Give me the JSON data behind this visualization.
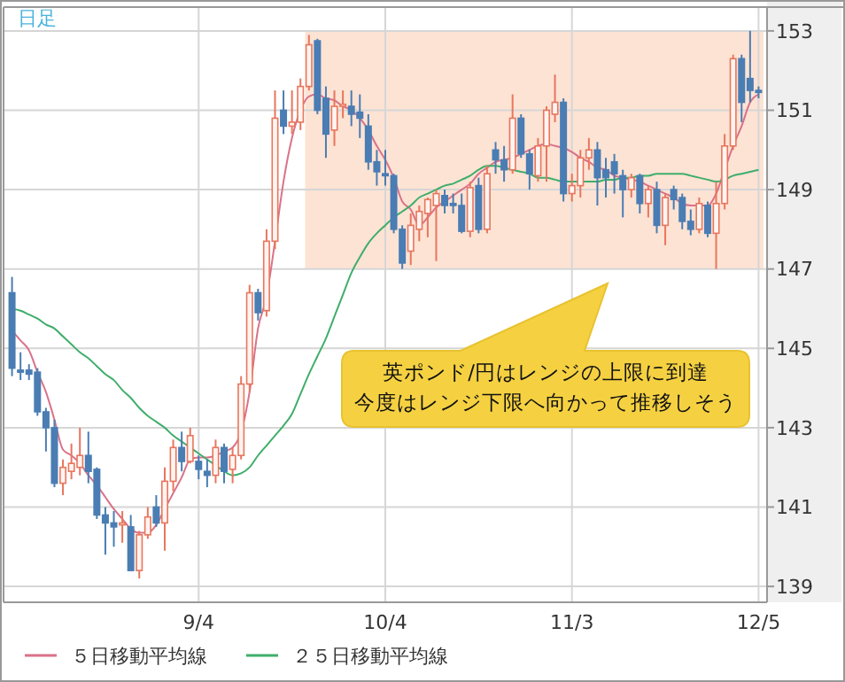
{
  "chart_data": {
    "type": "candlestick",
    "title": "日足",
    "categories": [
      null,
      null,
      null,
      null,
      null,
      null,
      null,
      null,
      null,
      null,
      null,
      null,
      null,
      null,
      null,
      null,
      null,
      null,
      null,
      null,
      null,
      null,
      "9/4",
      null,
      null,
      null,
      null,
      null,
      null,
      null,
      null,
      null,
      null,
      null,
      null,
      null,
      null,
      null,
      null,
      null,
      null,
      null,
      null,
      null,
      "10/4",
      null,
      null,
      null,
      null,
      null,
      null,
      null,
      null,
      null,
      null,
      null,
      null,
      null,
      null,
      null,
      null,
      null,
      null,
      null,
      null,
      null,
      "11/3",
      null,
      null,
      null,
      null,
      null,
      null,
      null,
      null,
      null,
      null,
      null,
      null,
      null,
      null,
      null,
      null,
      null,
      null,
      null,
      null,
      null,
      "12/5"
    ],
    "ohlc": [
      [
        146.4,
        146.8,
        144.3,
        144.5
      ],
      [
        144.45,
        144.9,
        144.2,
        144.4
      ],
      [
        144.45,
        144.6,
        144.2,
        144.35
      ],
      [
        144.4,
        144.5,
        143.3,
        143.4
      ],
      [
        143.4,
        143.5,
        142.4,
        143.0
      ],
      [
        143.0,
        143.2,
        141.5,
        141.6
      ],
      [
        141.6,
        142.2,
        141.3,
        142.0
      ],
      [
        141.9,
        142.6,
        141.7,
        142.1
      ],
      [
        142.0,
        143.0,
        141.8,
        142.3
      ],
      [
        142.3,
        142.9,
        141.6,
        141.9
      ],
      [
        141.95,
        142.0,
        140.7,
        140.8
      ],
      [
        140.8,
        141.0,
        139.8,
        140.6
      ],
      [
        140.6,
        140.9,
        140.0,
        140.5
      ],
      [
        140.55,
        140.9,
        140.1,
        140.6
      ],
      [
        140.5,
        140.8,
        139.4,
        139.4
      ],
      [
        139.4,
        140.4,
        139.2,
        140.3
      ],
      [
        140.3,
        141.0,
        140.2,
        140.75
      ],
      [
        141.0,
        141.3,
        140.5,
        140.6
      ],
      [
        140.6,
        142.0,
        139.9,
        141.65
      ],
      [
        141.65,
        142.7,
        141.4,
        142.5
      ],
      [
        142.5,
        142.9,
        141.9,
        142.15
      ],
      [
        142.15,
        143.0,
        142.1,
        142.8
      ],
      [
        142.15,
        142.3,
        141.7,
        141.95
      ],
      [
        141.9,
        142.2,
        141.5,
        141.8
      ],
      [
        141.8,
        142.7,
        141.6,
        142.5
      ],
      [
        142.5,
        142.6,
        141.6,
        141.9
      ],
      [
        141.95,
        142.5,
        141.6,
        142.3
      ],
      [
        142.3,
        144.3,
        142.2,
        144.1
      ],
      [
        144.1,
        146.6,
        143.9,
        146.4
      ],
      [
        146.4,
        146.5,
        145.7,
        145.9
      ],
      [
        145.95,
        148.0,
        145.8,
        147.7
      ],
      [
        147.7,
        151.5,
        147.5,
        150.8
      ],
      [
        151.0,
        151.5,
        150.4,
        150.6
      ],
      [
        150.6,
        151.5,
        150.4,
        150.7
      ],
      [
        150.7,
        151.8,
        150.5,
        151.6
      ],
      [
        151.6,
        152.9,
        151.5,
        152.65
      ],
      [
        152.75,
        152.8,
        150.9,
        151.0
      ],
      [
        151.3,
        151.6,
        149.8,
        150.4
      ],
      [
        150.5,
        151.5,
        150.1,
        151.1
      ],
      [
        151.1,
        151.5,
        150.8,
        151.15
      ],
      [
        151.1,
        151.5,
        150.6,
        150.9
      ],
      [
        150.95,
        151.4,
        150.3,
        150.8
      ],
      [
        150.6,
        150.9,
        149.5,
        149.7
      ],
      [
        149.7,
        150.0,
        149.1,
        149.45
      ],
      [
        149.4,
        150.0,
        149.1,
        149.35
      ],
      [
        149.35,
        149.4,
        147.9,
        148.0
      ],
      [
        148.0,
        148.1,
        147.0,
        147.15
      ],
      [
        147.45,
        148.4,
        147.1,
        148.1
      ],
      [
        148.0,
        148.6,
        147.7,
        148.45
      ],
      [
        148.4,
        148.8,
        147.8,
        148.75
      ],
      [
        148.6,
        149.0,
        147.2,
        148.9
      ],
      [
        148.85,
        149.0,
        148.4,
        148.6
      ],
      [
        148.65,
        148.9,
        148.4,
        148.6
      ],
      [
        148.6,
        148.9,
        147.9,
        147.95
      ],
      [
        147.95,
        149.2,
        147.8,
        149.05
      ],
      [
        149.1,
        149.3,
        147.9,
        148.0
      ],
      [
        148.0,
        149.6,
        147.9,
        149.4
      ],
      [
        150.0,
        150.2,
        149.4,
        149.75
      ],
      [
        149.75,
        150.1,
        149.2,
        149.5
      ],
      [
        149.5,
        151.4,
        149.4,
        150.8
      ],
      [
        150.8,
        150.9,
        149.8,
        149.9
      ],
      [
        149.9,
        150.0,
        149.0,
        149.4
      ],
      [
        149.35,
        150.3,
        149.2,
        150.1
      ],
      [
        150.1,
        151.1,
        149.2,
        151.0
      ],
      [
        150.9,
        151.9,
        150.7,
        151.2
      ],
      [
        151.2,
        151.3,
        148.7,
        148.9
      ],
      [
        148.9,
        149.4,
        148.7,
        149.1
      ],
      [
        149.1,
        150.0,
        148.8,
        149.8
      ],
      [
        149.8,
        150.3,
        149.5,
        150.0
      ],
      [
        150.0,
        150.2,
        148.6,
        149.3
      ],
      [
        149.5,
        149.8,
        148.8,
        149.3
      ],
      [
        149.7,
        149.9,
        148.9,
        149.4
      ],
      [
        149.35,
        149.5,
        148.3,
        149.0
      ],
      [
        149.0,
        149.4,
        148.8,
        149.3
      ],
      [
        149.35,
        149.4,
        148.4,
        148.65
      ],
      [
        148.65,
        149.1,
        148.3,
        149.0
      ],
      [
        149.0,
        149.2,
        147.9,
        148.1
      ],
      [
        148.1,
        148.9,
        147.6,
        148.8
      ],
      [
        149.0,
        149.1,
        148.5,
        148.75
      ],
      [
        148.8,
        148.9,
        148.0,
        148.2
      ],
      [
        148.2,
        148.5,
        147.85,
        148.0
      ],
      [
        148.0,
        148.8,
        147.9,
        148.65
      ],
      [
        148.6,
        148.7,
        147.8,
        147.9
      ],
      [
        147.9,
        149.2,
        147.0,
        148.65
      ],
      [
        148.65,
        150.4,
        148.5,
        150.1
      ],
      [
        150.1,
        152.4,
        150.0,
        152.3
      ],
      [
        152.3,
        152.4,
        150.7,
        151.2
      ],
      [
        151.8,
        153.0,
        151.2,
        151.5
      ],
      [
        151.5,
        151.6,
        151.3,
        151.45
      ]
    ],
    "colors": [
      "#4a7db3",
      "#4a7db3",
      "#4a7db3",
      "#4a7db3",
      "#4a7db3",
      "#4a7db3",
      "#e8765e",
      "#e8765e",
      "#e8765e",
      "#4a7db3",
      "#4a7db3",
      "#4a7db3",
      "#4a7db3",
      "#e8765e",
      "#4a7db3",
      "#e8765e",
      "#e8765e",
      "#4a7db3",
      "#e8765e",
      "#e8765e",
      "#4a7db3",
      "#e8765e",
      "#4a7db3",
      "#4a7db3",
      "#e8765e",
      "#4a7db3",
      "#e8765e",
      "#e8765e",
      "#e8765e",
      "#4a7db3",
      "#e8765e",
      "#e8765e",
      "#4a7db3",
      "#e8765e",
      "#e8765e",
      "#e8765e",
      "#4a7db3",
      "#4a7db3",
      "#e8765e",
      "#e8765e",
      "#4a7db3",
      "#4a7db3",
      "#4a7db3",
      "#4a7db3",
      "#4a7db3",
      "#4a7db3",
      "#4a7db3",
      "#e8765e",
      "#e8765e",
      "#e8765e",
      "#e8765e",
      "#4a7db3",
      "#4a7db3",
      "#4a7db3",
      "#e8765e",
      "#4a7db3",
      "#e8765e",
      "#4a7db3",
      "#4a7db3",
      "#e8765e",
      "#4a7db3",
      "#4a7db3",
      "#e8765e",
      "#e8765e",
      "#e8765e",
      "#4a7db3",
      "#e8765e",
      "#e8765e",
      "#e8765e",
      "#4a7db3",
      "#4a7db3",
      "#4a7db3",
      "#4a7db3",
      "#e8765e",
      "#4a7db3",
      "#e8765e",
      "#4a7db3",
      "#e8765e",
      "#4a7db3",
      "#4a7db3",
      "#4a7db3",
      "#e8765e",
      "#4a7db3",
      "#e8765e",
      "#e8765e",
      "#e8765e",
      "#4a7db3",
      "#4a7db3",
      "#4a7db3"
    ],
    "series": [
      {
        "type": "line",
        "name": "５日移動平均線",
        "color": "#d9728a",
        "values": [
          145.45,
          145.2,
          144.95,
          144.4,
          143.9,
          143.2,
          142.45,
          142.3,
          142.1,
          141.8,
          141.55,
          141.25,
          140.95,
          140.7,
          140.45,
          140.35,
          140.35,
          140.55,
          140.95,
          141.35,
          141.75,
          142.2,
          142.25,
          142.25,
          142.3,
          142.4,
          142.5,
          142.9,
          143.9,
          145.5,
          146.3,
          147.7,
          149.2,
          150.3,
          151.0,
          151.35,
          151.4,
          151.3,
          151.25,
          151.1,
          151.0,
          150.8,
          150.5,
          150.1,
          149.75,
          149.3,
          148.7,
          148.5,
          148.1,
          148.3,
          148.55,
          148.7,
          148.85,
          149.0,
          149.15,
          149.4,
          149.55,
          149.7,
          149.75,
          149.8,
          149.9,
          150.0,
          150.1,
          150.15,
          150.1,
          150.05,
          149.95,
          149.8,
          149.7,
          149.55,
          149.5,
          149.35,
          149.3,
          149.25,
          149.2,
          149.1,
          149.0,
          148.9,
          148.8,
          148.65,
          148.6,
          148.6,
          148.6,
          148.9,
          149.5,
          150.1,
          150.6,
          151.2,
          151.4
        ]
      },
      {
        "type": "line",
        "name": "２５日移動平均線",
        "color": "#3fae6a",
        "values": [
          146.0,
          145.95,
          145.85,
          145.75,
          145.6,
          145.5,
          145.3,
          145.1,
          144.9,
          144.75,
          144.55,
          144.35,
          144.2,
          143.95,
          143.75,
          143.5,
          143.3,
          143.15,
          143.0,
          142.8,
          142.65,
          142.5,
          142.35,
          142.2,
          142.05,
          141.9,
          141.8,
          141.85,
          142.0,
          142.3,
          142.55,
          142.8,
          143.05,
          143.35,
          143.85,
          144.35,
          144.8,
          145.25,
          145.8,
          146.35,
          146.9,
          147.3,
          147.65,
          147.9,
          148.1,
          148.3,
          148.45,
          148.6,
          148.8,
          148.9,
          149.0,
          149.1,
          149.15,
          149.25,
          149.35,
          149.5,
          149.6,
          149.6,
          149.55,
          149.5,
          149.45,
          149.4,
          149.3,
          149.3,
          149.25,
          149.2,
          149.2,
          149.2,
          149.2,
          149.2,
          149.25,
          149.25,
          149.3,
          149.3,
          149.35,
          149.35,
          149.4,
          149.4,
          149.4,
          149.4,
          149.35,
          149.3,
          149.25,
          149.2,
          149.25,
          149.35,
          149.4,
          149.45,
          149.5
        ]
      }
    ],
    "ylim": [
      138.6,
      153.6
    ],
    "yticks": [
      139,
      141,
      143,
      145,
      147,
      149,
      151,
      153
    ],
    "grid": true,
    "legend": "bottom",
    "bands": [
      {
        "axis": "y",
        "from": 147,
        "to": 153,
        "color": "#fde3d4"
      }
    ],
    "annotations": [
      "英ポンド/円はレンジの上限に到達",
      "今度はレンジ下限へ向かって推移しそう"
    ]
  }
}
